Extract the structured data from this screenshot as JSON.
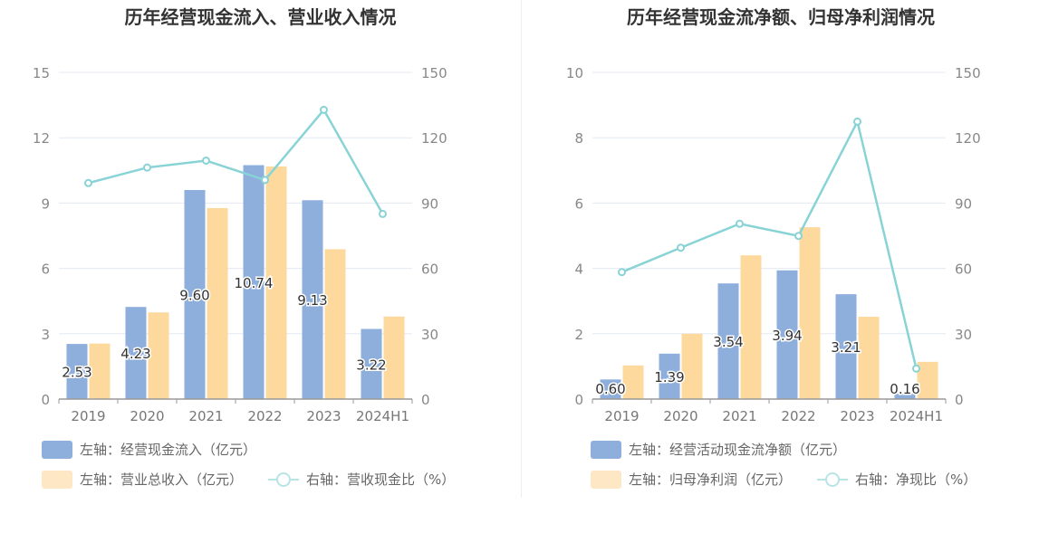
{
  "chart_data": [
    {
      "type": "bar",
      "title": "历年经营现金流入、营业收入情况",
      "categories": [
        "2019",
        "2020",
        "2021",
        "2022",
        "2023",
        "2024H1"
      ],
      "left_axis": {
        "ylim": [
          0,
          15
        ],
        "ticks": [
          "0",
          "3",
          "6",
          "9",
          "12",
          "15"
        ]
      },
      "right_axis": {
        "ylim": [
          0,
          150
        ],
        "ticks": [
          "0",
          "30",
          "60",
          "90",
          "120",
          "150"
        ]
      },
      "series": [
        {
          "name": "左轴：经营现金流入（亿元）",
          "type": "bar",
          "axis": "left",
          "color": "#8eaedc",
          "values": [
            2.53,
            4.23,
            9.6,
            10.74,
            9.13,
            3.22
          ],
          "labels": [
            "2.53",
            "4.23",
            "9.60",
            "10.74",
            "9.13",
            "3.22"
          ]
        },
        {
          "name": "左轴：营业总收入（亿元）",
          "type": "bar",
          "axis": "left",
          "color": "#fed99e",
          "values": [
            2.55,
            3.98,
            8.77,
            10.68,
            6.88,
            3.79
          ]
        },
        {
          "name": "右轴：营收现金比（%）",
          "type": "line",
          "axis": "right",
          "color": "#88d3d6",
          "values": [
            99.2,
            106.3,
            109.5,
            100.6,
            132.8,
            85.0
          ]
        }
      ],
      "grid": true,
      "legend_position": "bottom"
    },
    {
      "type": "bar",
      "title": "历年经营现金流净额、归母净利润情况",
      "categories": [
        "2019",
        "2020",
        "2021",
        "2022",
        "2023",
        "2024H1"
      ],
      "left_axis": {
        "ylim": [
          0,
          10
        ],
        "ticks": [
          "0",
          "2",
          "4",
          "6",
          "8",
          "10"
        ]
      },
      "right_axis": {
        "ylim": [
          0,
          150
        ],
        "ticks": [
          "0",
          "30",
          "60",
          "90",
          "120",
          "150"
        ]
      },
      "series": [
        {
          "name": "左轴：经营活动现金流净额（亿元）",
          "type": "bar",
          "axis": "left",
          "color": "#8eaedc",
          "values": [
            0.6,
            1.39,
            3.54,
            3.94,
            3.21,
            0.16
          ],
          "labels": [
            "0.60",
            "1.39",
            "3.54",
            "3.94",
            "3.21",
            "0.16"
          ]
        },
        {
          "name": "左轴：归母净利润（亿元）",
          "type": "bar",
          "axis": "left",
          "color": "#fed99e",
          "values": [
            1.03,
            2.0,
            4.4,
            5.26,
            2.52,
            1.14
          ]
        },
        {
          "name": "右轴：净现比（%）",
          "type": "line",
          "axis": "right",
          "color": "#88d3d6",
          "values": [
            58.3,
            69.5,
            80.5,
            74.9,
            127.4,
            14.0
          ]
        }
      ],
      "grid": true,
      "legend_position": "bottom"
    }
  ]
}
